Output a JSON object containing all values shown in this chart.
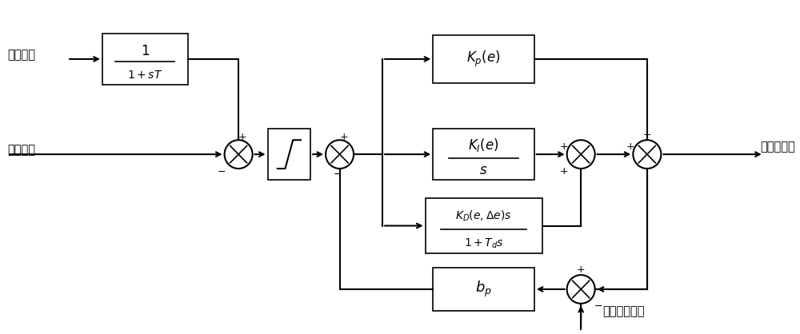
{
  "bg_color": "#ffffff",
  "line_color": "#000000",
  "box_color": "#ffffff",
  "box_edge": "#000000",
  "text_color": "#000000",
  "label_jipinfankui": "机频反馈",
  "label_jipingeding": "机频给定",
  "label_output": "控制器输出",
  "label_guide": "导叶开度给定",
  "block_filter": "1\n──────\n1+sT",
  "block_kp": "$K_p(e)$",
  "block_ki_num": "$K_I(e)$",
  "block_ki_den": "$s$",
  "block_kd_num": "$K_D(e,\\Delta e)s$",
  "block_kd_den": "$1+T_d s$",
  "block_bp": "$b_p$"
}
